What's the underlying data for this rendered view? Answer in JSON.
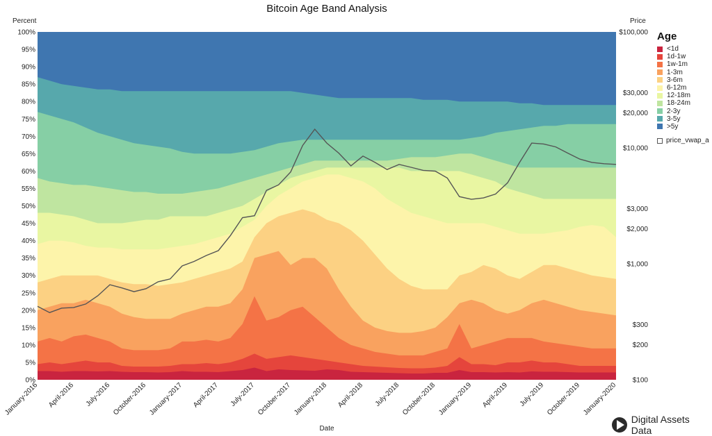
{
  "chart_data": {
    "type": "area",
    "title": "Bitcoin Age Band Analysis",
    "xlabel": "Date",
    "ylabel_left": "Percent",
    "ylabel_right": "Price",
    "stacked_percent": true,
    "y_left_range": [
      0,
      100
    ],
    "y_right_scale": "log",
    "y_right_range": [
      100,
      100000
    ],
    "left_ticks": [
      "0%",
      "5%",
      "10%",
      "15%",
      "20%",
      "25%",
      "30%",
      "35%",
      "40%",
      "45%",
      "50%",
      "55%",
      "60%",
      "65%",
      "70%",
      "75%",
      "80%",
      "85%",
      "90%",
      "95%",
      "100%"
    ],
    "right_ticks": [
      {
        "label": "$100",
        "value": 100
      },
      {
        "label": "$200",
        "value": 200
      },
      {
        "label": "$300",
        "value": 300
      },
      {
        "label": "$1,000",
        "value": 1000
      },
      {
        "label": "$2,000",
        "value": 2000
      },
      {
        "label": "$3,000",
        "value": 3000
      },
      {
        "label": "$10,000",
        "value": 10000
      },
      {
        "label": "$20,000",
        "value": 20000
      },
      {
        "label": "$30,000",
        "value": 30000
      },
      {
        "label": "$100,000",
        "value": 100000
      }
    ],
    "x_ticks": [
      "January-2016",
      "April-2016",
      "July-2016",
      "October-2016",
      "January-2017",
      "April-2017",
      "July-2017",
      "October-2017",
      "January-2018",
      "April-2018",
      "July-2018",
      "October-2018",
      "January-2019",
      "April-2019",
      "July-2019",
      "October-2019",
      "January-2020"
    ],
    "x_range": [
      "2016-01",
      "2020-01"
    ],
    "legend_title": "Age",
    "legend_position": "right",
    "cumulative_x": [
      0,
      1,
      2,
      3,
      4,
      5,
      6,
      7,
      8,
      9,
      10,
      11,
      12,
      13,
      14,
      15,
      16,
      17,
      18,
      19,
      20,
      21,
      22,
      23,
      24,
      25,
      26,
      27,
      28,
      29,
      30,
      31,
      32,
      33,
      34,
      35,
      36,
      37,
      38,
      39,
      40,
      41,
      42,
      43,
      44,
      45,
      46,
      47,
      48
    ],
    "series": [
      {
        "name": "<1d",
        "color": "#c9243f",
        "upper_cumulative": [
          2.5,
          2.5,
          2.3,
          2.5,
          2.5,
          2.4,
          2.5,
          2.3,
          2.2,
          2.2,
          2.1,
          2.2,
          2.5,
          2.3,
          2.3,
          2.2,
          2.5,
          2.8,
          3.5,
          2.5,
          3.0,
          2.8,
          2.7,
          2.6,
          3.0,
          2.8,
          2.3,
          2.2,
          2.1,
          2.0,
          1.9,
          1.8,
          1.8,
          2.0,
          2.0,
          2.8,
          2.2,
          2.2,
          2.1,
          2.2,
          2.1,
          2.4,
          2.3,
          2.3,
          2.2,
          2.1,
          2.1,
          2.1,
          2.1
        ]
      },
      {
        "name": "1d-1w",
        "color": "#e5453c",
        "upper_cumulative": [
          4.5,
          5.0,
          4.5,
          5.0,
          5.5,
          5.0,
          5.0,
          4.0,
          3.8,
          3.8,
          3.8,
          4.0,
          4.5,
          4.5,
          4.8,
          4.5,
          5.0,
          6.0,
          7.5,
          6.0,
          6.5,
          7.0,
          6.5,
          6.0,
          5.5,
          5.0,
          4.5,
          4.0,
          3.8,
          3.6,
          3.4,
          3.3,
          3.3,
          3.5,
          4.0,
          6.5,
          4.5,
          4.5,
          4.2,
          5.0,
          5.0,
          5.5,
          5.0,
          5.0,
          4.5,
          4.0,
          4.0,
          4.0,
          4.0
        ]
      },
      {
        "name": "1w-1m",
        "color": "#f47346",
        "upper_cumulative": [
          11.0,
          12.0,
          11.0,
          12.5,
          13.0,
          12.0,
          11.0,
          9.0,
          8.5,
          8.5,
          8.5,
          9.0,
          11.0,
          11.0,
          11.5,
          11.0,
          12.0,
          16.0,
          24.0,
          17.0,
          18.0,
          20.0,
          21.0,
          18.0,
          15.0,
          12.0,
          10.0,
          9.0,
          8.0,
          7.5,
          7.0,
          7.0,
          7.0,
          8.0,
          9.0,
          16.0,
          9.0,
          10.0,
          11.0,
          12.0,
          12.0,
          12.0,
          11.0,
          10.5,
          10.0,
          9.5,
          9.0,
          9.0,
          9.0
        ]
      },
      {
        "name": "1-3m",
        "color": "#f9a25f",
        "upper_cumulative": [
          20.0,
          21.0,
          22.0,
          22.0,
          23.0,
          22.0,
          21.0,
          19.0,
          18.0,
          17.5,
          17.5,
          17.5,
          19.0,
          20.0,
          21.0,
          21.0,
          22.0,
          26.0,
          35.0,
          36.0,
          37.0,
          33.0,
          35.0,
          35.0,
          32.0,
          26.0,
          21.0,
          17.0,
          15.0,
          14.0,
          13.5,
          13.5,
          14.0,
          15.0,
          18.0,
          22.0,
          23.0,
          22.0,
          20.0,
          19.0,
          20.0,
          22.0,
          23.0,
          22.0,
          21.0,
          20.0,
          19.5,
          19.0,
          18.5
        ]
      },
      {
        "name": "3-6m",
        "color": "#fcd183",
        "upper_cumulative": [
          28.0,
          29.0,
          30.0,
          30.0,
          30.0,
          30.0,
          29.0,
          28.0,
          27.5,
          27.5,
          27.0,
          27.5,
          28.0,
          29.0,
          30.0,
          31.0,
          32.0,
          34.0,
          41.0,
          45.0,
          47.0,
          48.0,
          49.0,
          48.0,
          46.0,
          45.0,
          43.0,
          40.0,
          36.0,
          32.0,
          29.0,
          27.0,
          26.0,
          26.0,
          26.0,
          30.0,
          31.0,
          33.0,
          32.0,
          30.0,
          29.0,
          31.0,
          33.0,
          33.0,
          32.0,
          31.0,
          30.0,
          29.5,
          29.0
        ]
      },
      {
        "name": "6-12m",
        "color": "#fdf4aa",
        "upper_cumulative": [
          39.0,
          40.0,
          40.0,
          39.5,
          38.5,
          38.0,
          38.0,
          37.5,
          37.5,
          37.5,
          37.5,
          38.0,
          38.5,
          39.0,
          40.0,
          41.0,
          42.0,
          44.0,
          46.0,
          50.0,
          53.0,
          55.0,
          57.0,
          58.0,
          59.0,
          59.0,
          58.0,
          57.0,
          55.0,
          52.0,
          50.0,
          48.0,
          47.0,
          46.0,
          45.0,
          45.0,
          45.0,
          45.0,
          44.0,
          43.0,
          42.0,
          42.0,
          42.0,
          42.5,
          43.0,
          44.0,
          44.5,
          44.0,
          41.0
        ]
      },
      {
        "name": "12-18m",
        "color": "#e9f6a2",
        "upper_cumulative": [
          48.0,
          48.0,
          47.5,
          47.0,
          46.0,
          45.0,
          45.0,
          45.0,
          45.5,
          46.0,
          46.0,
          47.0,
          47.0,
          47.0,
          47.0,
          48.0,
          49.0,
          50.0,
          52.0,
          54.0,
          56.0,
          58.0,
          59.0,
          60.0,
          61.0,
          61.0,
          61.0,
          61.0,
          61.0,
          61.0,
          61.0,
          60.0,
          60.0,
          60.0,
          60.0,
          60.0,
          59.0,
          58.0,
          57.0,
          55.0,
          54.0,
          53.0,
          52.0,
          52.0,
          52.0,
          52.0,
          52.0,
          52.0,
          52.0
        ]
      },
      {
        "name": "18-24m",
        "color": "#bfe5a0",
        "upper_cumulative": [
          58.0,
          57.0,
          56.5,
          56.0,
          56.0,
          55.5,
          55.0,
          54.5,
          54.0,
          54.0,
          53.5,
          53.5,
          53.5,
          54.0,
          54.5,
          55.0,
          56.0,
          57.0,
          58.0,
          59.0,
          60.0,
          61.0,
          62.0,
          63.0,
          63.0,
          63.0,
          63.0,
          63.0,
          63.0,
          63.0,
          63.5,
          64.0,
          64.0,
          64.0,
          64.5,
          65.0,
          65.0,
          64.0,
          63.0,
          62.0,
          61.0,
          61.0,
          61.0,
          61.0,
          61.0,
          61.0,
          61.0,
          61.0,
          61.0
        ]
      },
      {
        "name": "2-3y",
        "color": "#86cfa5",
        "upper_cumulative": [
          77.0,
          76.0,
          75.0,
          74.0,
          72.5,
          71.0,
          70.0,
          69.0,
          68.0,
          67.5,
          67.0,
          66.5,
          65.5,
          65.0,
          65.0,
          65.0,
          65.0,
          65.5,
          66.0,
          67.0,
          68.0,
          68.5,
          69.0,
          69.0,
          69.0,
          69.0,
          69.0,
          69.0,
          69.0,
          69.0,
          69.0,
          69.0,
          69.0,
          69.0,
          69.0,
          69.0,
          69.5,
          70.0,
          71.0,
          71.5,
          72.0,
          72.5,
          73.0,
          73.0,
          73.5,
          73.5,
          73.5,
          73.5,
          73.5
        ]
      },
      {
        "name": "3-5y",
        "color": "#57a8ac",
        "upper_cumulative": [
          87.0,
          86.0,
          85.0,
          84.5,
          84.0,
          83.5,
          83.5,
          83.0,
          83.0,
          83.0,
          83.0,
          83.0,
          83.0,
          83.0,
          83.0,
          83.0,
          83.0,
          83.0,
          83.0,
          83.0,
          83.0,
          83.0,
          82.5,
          82.0,
          81.5,
          81.0,
          81.0,
          81.0,
          81.0,
          81.0,
          81.0,
          81.0,
          80.5,
          80.5,
          80.5,
          80.0,
          80.0,
          80.0,
          80.0,
          80.0,
          79.5,
          79.5,
          79.0,
          79.0,
          79.0,
          79.0,
          79.0,
          79.0,
          79.0
        ]
      },
      {
        "name": ">5y",
        "color": "#3f76b0",
        "upper_cumulative": [
          100,
          100,
          100,
          100,
          100,
          100,
          100,
          100,
          100,
          100,
          100,
          100,
          100,
          100,
          100,
          100,
          100,
          100,
          100,
          100,
          100,
          100,
          100,
          100,
          100,
          100,
          100,
          100,
          100,
          100,
          100,
          100,
          100,
          100,
          100,
          100,
          100,
          100,
          100,
          100,
          100,
          100,
          100,
          100,
          100,
          100,
          100,
          100,
          100
        ]
      }
    ],
    "price_series": {
      "name": "price_vwap_a",
      "color": "#555555",
      "x_month_index": [
        0,
        1,
        2,
        3,
        4,
        5,
        6,
        7,
        8,
        9,
        10,
        11,
        12,
        13,
        14,
        15,
        16,
        17,
        18,
        19,
        20,
        21,
        22,
        23,
        24,
        25,
        26,
        27,
        28,
        29,
        30,
        31,
        32,
        33,
        34,
        35,
        36,
        37,
        38,
        39,
        40,
        41,
        42,
        43,
        44,
        45,
        46,
        47,
        48
      ],
      "values": [
        430,
        380,
        415,
        420,
        450,
        530,
        660,
        620,
        575,
        610,
        700,
        740,
        960,
        1050,
        1180,
        1300,
        1750,
        2500,
        2600,
        4300,
        4800,
        6200,
        10500,
        14500,
        11000,
        9000,
        7000,
        8500,
        7500,
        6500,
        7200,
        6800,
        6400,
        6300,
        5500,
        3800,
        3600,
        3700,
        4000,
        5000,
        7500,
        11000,
        10800,
        10200,
        9000,
        8000,
        7500,
        7300,
        7200
      ]
    }
  },
  "brand": {
    "name": "Digital Assets Data"
  }
}
